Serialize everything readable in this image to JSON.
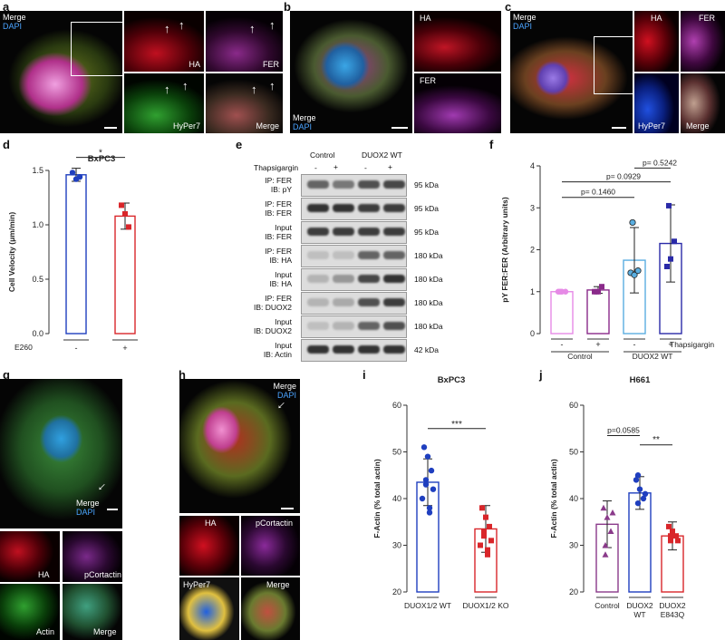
{
  "panels": {
    "a": {
      "label": "a",
      "merge": "Merge",
      "dapi": "DAPI",
      "ha": "HA",
      "fer": "FER",
      "hyper7": "HyPer7",
      "merge2": "Merge"
    },
    "b": {
      "label": "b",
      "merge": "Merge",
      "dapi": "DAPI",
      "ha": "HA",
      "fer": "FER"
    },
    "c": {
      "label": "c",
      "merge": "Merge",
      "dapi": "DAPI",
      "ha": "HA",
      "fer": "FER",
      "hyper7": "HyPer7",
      "merge2": "Merge"
    },
    "d": {
      "label": "d"
    },
    "e": {
      "label": "e"
    },
    "f": {
      "label": "f"
    },
    "g": {
      "label": "g",
      "merge": "Merge",
      "dapi": "DAPI",
      "ha": "HA",
      "pcortactin": "pCortactin",
      "actin": "Actin",
      "merge2": "Merge"
    },
    "h": {
      "label": "h",
      "merge": "Merge",
      "dapi": "DAPI",
      "ha": "HA",
      "pcortactin": "pCortactin",
      "hyper7": "HyPer7",
      "merge2": "Merge"
    },
    "i": {
      "label": "i"
    },
    "j": {
      "label": "j"
    }
  },
  "blot": {
    "col_headers": [
      "Control",
      "DUOX2 WT"
    ],
    "thapsigargin_label": "Thapsigargin",
    "signs": [
      "-",
      "+",
      "-",
      "+"
    ],
    "rows": [
      {
        "l1": "IP: FER",
        "l2": "IB: pY",
        "kda": "95 kDa"
      },
      {
        "l1": "IP: FER",
        "l2": "IB: FER",
        "kda": "95 kDa"
      },
      {
        "l1": "Input",
        "l2": "IB: FER",
        "kda": "95 kDa"
      },
      {
        "l1": "IP: FER",
        "l2": "IB: HA",
        "kda": "180 kDa"
      },
      {
        "l1": "Input",
        "l2": "IB: HA",
        "kda": "180 kDa"
      },
      {
        "l1": "IP: FER",
        "l2": "IB: DUOX2",
        "kda": "180 kDa"
      },
      {
        "l1": "Input",
        "l2": "IB: DUOX2",
        "kda": "180 kDa"
      },
      {
        "l1": "Input",
        "l2": "IB: Actin",
        "kda": "42 kDa"
      }
    ]
  },
  "chart_data": [
    {
      "id": "d",
      "type": "bar",
      "title": "BxPC3",
      "ylabel": "Cell Velocity (μm/min)",
      "ylim": [
        0,
        1.5
      ],
      "yticks": [
        "0.0",
        "0.5",
        "1.0",
        "1.5"
      ],
      "categories": [
        "-",
        "+"
      ],
      "xgroup_label": "E260",
      "values": [
        1.46,
        1.08
      ],
      "errors": [
        0.06,
        0.12
      ],
      "points": [
        [
          1.48,
          1.42,
          1.44
        ],
        [
          1.18,
          1.1,
          0.98
        ]
      ],
      "colors": [
        "#1f3fbf",
        "#d9262a"
      ],
      "significance": "*"
    },
    {
      "id": "f",
      "type": "bar",
      "ylabel": "pY FER:FER (Arbitrary units)",
      "ylim": [
        0,
        4
      ],
      "yticks": [
        "0",
        "1",
        "2",
        "3",
        "4"
      ],
      "categories": [
        "-",
        "+",
        "-",
        "+"
      ],
      "group_labels": [
        "Control",
        "DUOX2 WT"
      ],
      "x_factor": "Thapsigargin",
      "values": [
        1.0,
        1.04,
        1.75,
        2.15
      ],
      "errors": [
        0.0,
        0.08,
        0.78,
        0.92
      ],
      "points": [
        [
          1.0,
          1.0,
          1.0,
          1.0
        ],
        [
          1.0,
          1.0,
          1.12,
          1.0
        ],
        [
          1.45,
          1.4,
          1.5,
          2.65
        ],
        [
          1.6,
          1.78,
          2.2,
          3.05
        ]
      ],
      "colors": [
        "#e68ae6",
        "#8a2a8a",
        "#5aaee0",
        "#2a2aa8"
      ],
      "comparisons": [
        "p= 0.1460",
        "p= 0.0929",
        "p= 0.5242"
      ]
    },
    {
      "id": "i",
      "type": "bar",
      "title": "BxPC3",
      "ylabel": "F-Actin (% total actin)",
      "ylim": [
        20,
        60
      ],
      "yticks": [
        "20",
        "30",
        "40",
        "50",
        "60"
      ],
      "categories": [
        "DUOX1/2 WT",
        "DUOX1/2 KO"
      ],
      "values": [
        43.5,
        33.5
      ],
      "errors": [
        5.0,
        5.0
      ],
      "points": [
        [
          51,
          49,
          46,
          44,
          43,
          42,
          40,
          38,
          37
        ],
        [
          38,
          36,
          34,
          33,
          32,
          31,
          30,
          29,
          28
        ]
      ],
      "colors": [
        "#1f3fbf",
        "#d9262a"
      ],
      "significance": "***"
    },
    {
      "id": "j",
      "type": "bar",
      "title": "H661",
      "ylabel": "F-Actin (% total actin)",
      "ylim": [
        20,
        60
      ],
      "yticks": [
        "20",
        "30",
        "40",
        "50",
        "60"
      ],
      "categories": [
        "Control",
        "DUOX2 WT",
        "DUOX2 E843Q"
      ],
      "values": [
        34.5,
        41.2,
        32.0
      ],
      "errors": [
        5.0,
        3.5,
        3.0
      ],
      "points": [
        [
          38,
          36,
          33,
          30,
          28,
          37
        ],
        [
          44,
          42,
          40,
          39,
          45,
          41
        ],
        [
          34,
          33,
          32,
          31,
          32,
          31
        ]
      ],
      "colors": [
        "#8a3a8a",
        "#1f3fbf",
        "#d9262a"
      ],
      "comparisons": [
        "p=0.0585",
        "**"
      ]
    }
  ]
}
